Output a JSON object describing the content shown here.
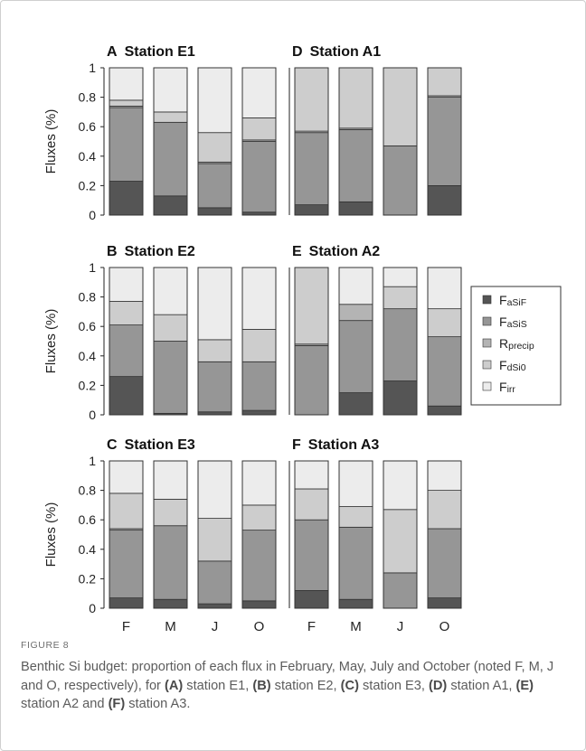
{
  "figure_label": "FIGURE 8",
  "caption": {
    "pre": "Benthic Si budget: proportion of each flux in February, May, July and October (noted F, M, J and O, respectively), for ",
    "A": "(A)",
    "t1": " station E1, ",
    "B": "(B)",
    "t2": " station E2, ",
    "C": "(C)",
    "t3": " station E3, ",
    "D": "(D)",
    "t4": " station A1, ",
    "E": "(E)",
    "t5": " station A2 and ",
    "F": "(F)",
    "t6": " station A3."
  },
  "colors": {
    "FaSiF": "#555555",
    "FaSiS": "#969696",
    "Rprecip": "#b4b4b4",
    "FdSi0": "#cdcdcd",
    "Firr": "#ececec"
  },
  "legend": [
    {
      "key": "FaSiF",
      "main": "F",
      "sub": "aSiF"
    },
    {
      "key": "FaSiS",
      "main": "F",
      "sub": "aSiS"
    },
    {
      "key": "Rprecip",
      "main": "R",
      "sub": "precip"
    },
    {
      "key": "FdSi0",
      "main": "F",
      "sub": "dSi0"
    },
    {
      "key": "Firr",
      "main": "F",
      "sub": "irr"
    }
  ],
  "chart_data": [
    {
      "type": "bar",
      "stacked": true,
      "panel": "A",
      "title": "Station E1",
      "categories": [
        "F",
        "M",
        "J",
        "O"
      ],
      "ylabel": "Fluxes (%)",
      "ylim": [
        0,
        1
      ],
      "yticks": [
        "0",
        "0.2",
        "0.4",
        "0.6",
        "0.8",
        "1"
      ],
      "series": [
        {
          "name": "FaSiF",
          "values": [
            0.23,
            0.13,
            0.05,
            0.02
          ]
        },
        {
          "name": "FaSiS",
          "values": [
            0.5,
            0.5,
            0.3,
            0.48
          ]
        },
        {
          "name": "Rprecip",
          "values": [
            0.01,
            0.0,
            0.01,
            0.01
          ]
        },
        {
          "name": "FdSi0",
          "values": [
            0.04,
            0.07,
            0.2,
            0.15
          ]
        },
        {
          "name": "Firr",
          "values": [
            0.22,
            0.3,
            0.44,
            0.34
          ]
        }
      ]
    },
    {
      "type": "bar",
      "stacked": true,
      "panel": "B",
      "title": "Station E2",
      "categories": [
        "F",
        "M",
        "J",
        "O"
      ],
      "ylabel": "Fluxes (%)",
      "ylim": [
        0,
        1
      ],
      "yticks": [
        "0",
        "0.2",
        "0.4",
        "0.6",
        "0.8",
        "1"
      ],
      "series": [
        {
          "name": "FaSiF",
          "values": [
            0.26,
            0.01,
            0.02,
            0.03
          ]
        },
        {
          "name": "FaSiS",
          "values": [
            0.35,
            0.49,
            0.34,
            0.33
          ]
        },
        {
          "name": "Rprecip",
          "values": [
            0.0,
            0.0,
            0.0,
            0.0
          ]
        },
        {
          "name": "FdSi0",
          "values": [
            0.16,
            0.18,
            0.15,
            0.22
          ]
        },
        {
          "name": "Firr",
          "values": [
            0.23,
            0.32,
            0.49,
            0.42
          ]
        }
      ]
    },
    {
      "type": "bar",
      "stacked": true,
      "panel": "C",
      "title": "Station E3",
      "categories": [
        "F",
        "M",
        "J",
        "O"
      ],
      "ylabel": "Fluxes (%)",
      "ylim": [
        0,
        1
      ],
      "yticks": [
        "0",
        "0.2",
        "0.4",
        "0.6",
        "0.8",
        "1"
      ],
      "series": [
        {
          "name": "FaSiF",
          "values": [
            0.07,
            0.06,
            0.03,
            0.05
          ]
        },
        {
          "name": "FaSiS",
          "values": [
            0.46,
            0.5,
            0.29,
            0.48
          ]
        },
        {
          "name": "Rprecip",
          "values": [
            0.01,
            0.0,
            0.0,
            0.0
          ]
        },
        {
          "name": "FdSi0",
          "values": [
            0.24,
            0.18,
            0.29,
            0.17
          ]
        },
        {
          "name": "Firr",
          "values": [
            0.22,
            0.26,
            0.39,
            0.3
          ]
        }
      ]
    },
    {
      "type": "bar",
      "stacked": true,
      "panel": "D",
      "title": "Station A1",
      "categories": [
        "F",
        "M",
        "J",
        "O"
      ],
      "ylabel": "",
      "ylim": [
        0,
        1
      ],
      "yticks": [],
      "series": [
        {
          "name": "FaSiF",
          "values": [
            0.07,
            0.09,
            0.0,
            0.2
          ]
        },
        {
          "name": "FaSiS",
          "values": [
            0.49,
            0.49,
            0.47,
            0.6
          ]
        },
        {
          "name": "Rprecip",
          "values": [
            0.01,
            0.01,
            0.0,
            0.01
          ]
        },
        {
          "name": "FdSi0",
          "values": [
            0.43,
            0.41,
            0.53,
            0.19
          ]
        },
        {
          "name": "Firr",
          "values": [
            0.0,
            0.0,
            0.0,
            0.0
          ]
        }
      ]
    },
    {
      "type": "bar",
      "stacked": true,
      "panel": "E",
      "title": "Station A2",
      "categories": [
        "F",
        "M",
        "J",
        "O"
      ],
      "ylabel": "",
      "ylim": [
        0,
        1
      ],
      "yticks": [],
      "series": [
        {
          "name": "FaSiF",
          "values": [
            0.0,
            0.15,
            0.23,
            0.06
          ]
        },
        {
          "name": "FaSiS",
          "values": [
            0.47,
            0.49,
            0.49,
            0.47
          ]
        },
        {
          "name": "Rprecip",
          "values": [
            0.01,
            0.11,
            0.0,
            0.0
          ]
        },
        {
          "name": "FdSi0",
          "values": [
            0.52,
            0.0,
            0.15,
            0.19
          ]
        },
        {
          "name": "Firr",
          "values": [
            0.0,
            0.25,
            0.13,
            0.28
          ]
        }
      ]
    },
    {
      "type": "bar",
      "stacked": true,
      "panel": "F",
      "title": "Station A3",
      "categories": [
        "F",
        "M",
        "J",
        "O"
      ],
      "ylabel": "",
      "ylim": [
        0,
        1
      ],
      "yticks": [],
      "series": [
        {
          "name": "FaSiF",
          "values": [
            0.12,
            0.06,
            0.0,
            0.07
          ]
        },
        {
          "name": "FaSiS",
          "values": [
            0.48,
            0.49,
            0.24,
            0.47
          ]
        },
        {
          "name": "Rprecip",
          "values": [
            0.0,
            0.0,
            0.0,
            0.0
          ]
        },
        {
          "name": "FdSi0",
          "values": [
            0.21,
            0.14,
            0.43,
            0.26
          ]
        },
        {
          "name": "Firr",
          "values": [
            0.19,
            0.31,
            0.33,
            0.2
          ]
        }
      ]
    }
  ]
}
